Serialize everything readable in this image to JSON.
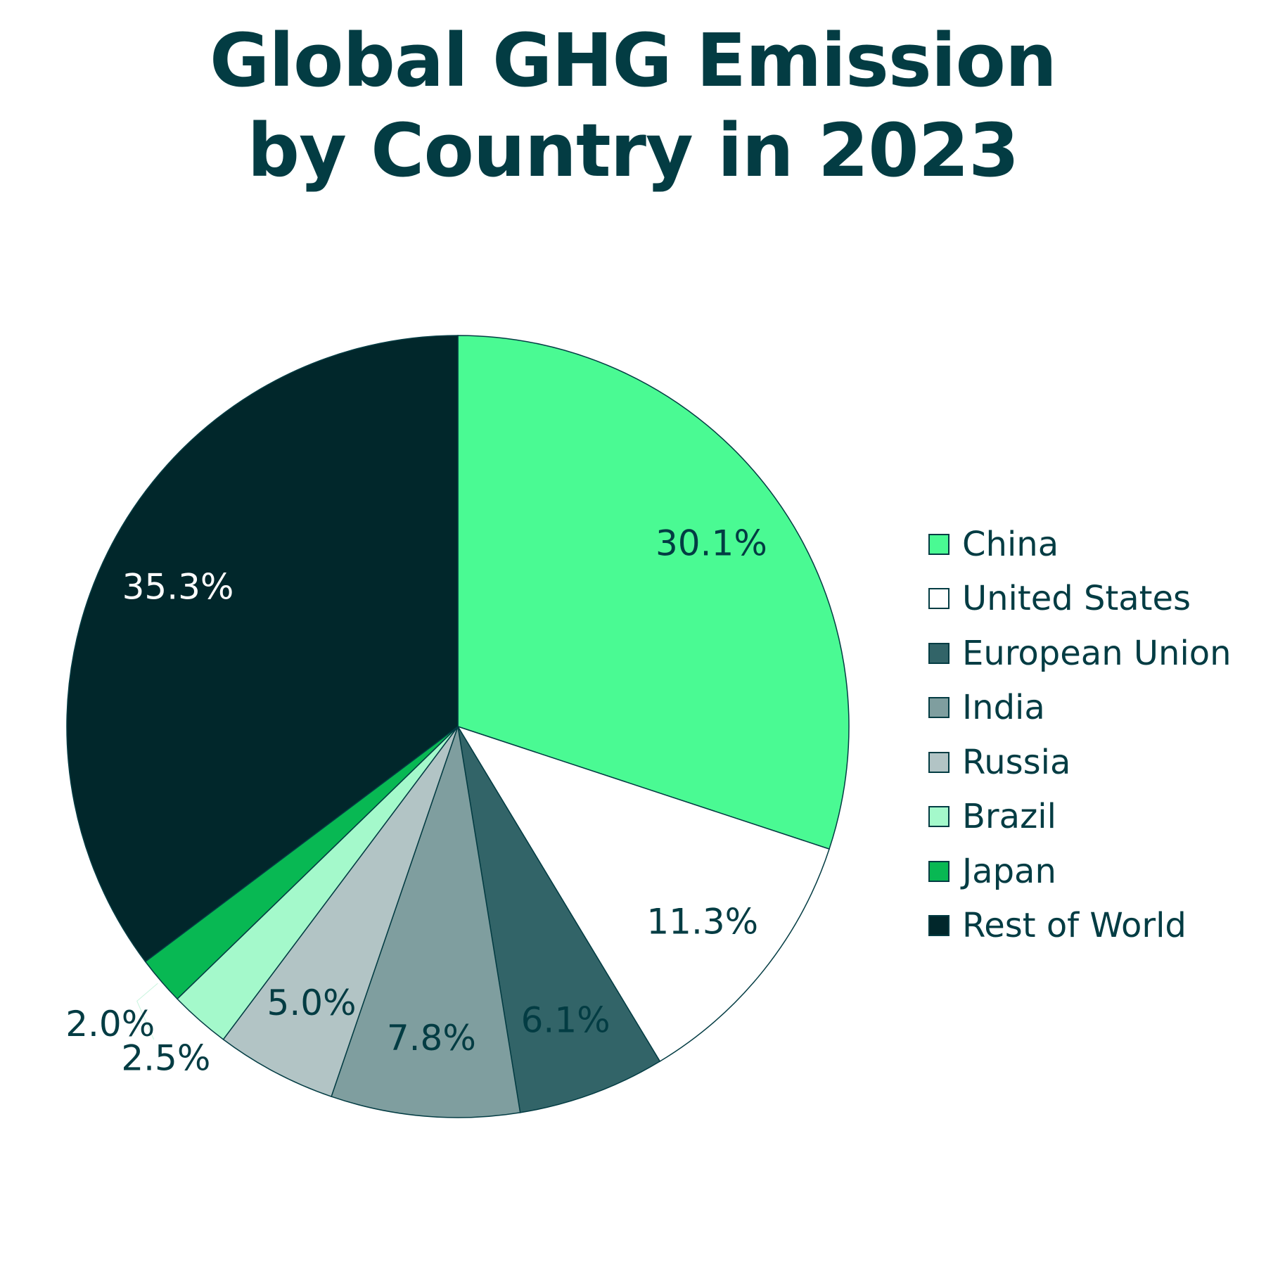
{
  "chart_data": {
    "type": "pie",
    "title": "Global GHG Emission by Country in 2023",
    "title_lines": [
      "Global GHG Emission",
      "by Country in 2023"
    ],
    "start": "top",
    "direction": "clockwise",
    "legend_placement": "right",
    "text_color": "#033c43",
    "slices": [
      {
        "name": "China",
        "value": 30.1,
        "label": "30.1%",
        "color": "#4afa93"
      },
      {
        "name": "United States",
        "value": 11.3,
        "label": "11.3%",
        "color": "#ffffff"
      },
      {
        "name": "European Union",
        "value": 6.1,
        "label": "6.1%",
        "color": "#326468"
      },
      {
        "name": "India",
        "value": 7.8,
        "label": "7.8%",
        "color": "#7f9e9f"
      },
      {
        "name": "Russia",
        "value": 5.0,
        "label": "5.0%",
        "color": "#b2c4c5"
      },
      {
        "name": "Brazil",
        "value": 2.5,
        "label": "2.5%",
        "color": "#a4f9cb"
      },
      {
        "name": "Japan",
        "value": 2.0,
        "label": "2.0%",
        "color": "#08b853"
      },
      {
        "name": "Rest of World",
        "value": 35.3,
        "label": "35.3%",
        "color": "#01272b"
      }
    ]
  }
}
